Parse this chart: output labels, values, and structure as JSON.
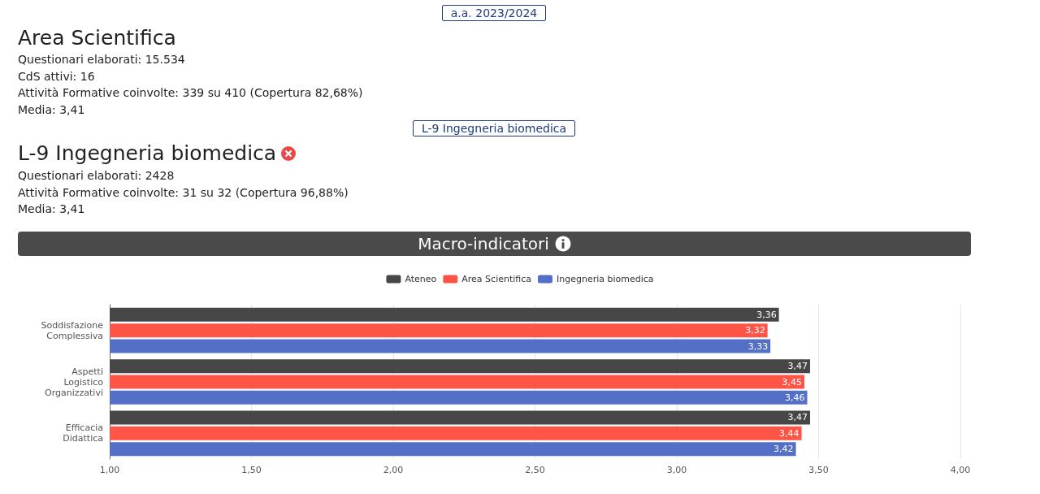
{
  "chart_data": {
    "type": "bar",
    "orientation": "horizontal",
    "title": "Macro-indicatori",
    "annotations": [
      "a.a. 2023/2024",
      "Area Scientifica",
      "Questionari elaborati: 15.534",
      "CdS attivi: 16",
      "Attività Formative coinvolte: 339 su 410 (Copertura 82,68%)",
      "Media: 3,41",
      "L-9 Ingegneria biomedica",
      "L-9 Ingegneria biomedica",
      "Questionari elaborati: 2428",
      "Attività Formative coinvolte: 31 su 32 (Copertura 96,88%)",
      "Media: 3,41"
    ],
    "categories": [
      "Soddisfazione Complessiva",
      "Aspetti Logistico Organizzativi",
      "Efficacia Didattica"
    ],
    "series": [
      {
        "name": "Ateneo",
        "color": "#474747",
        "values": [
          3.36,
          3.47,
          3.47
        ],
        "value_labels": [
          "3,36",
          "3,47",
          "3,47"
        ]
      },
      {
        "name": "Area Scientifica",
        "color": "#ff5546",
        "values": [
          3.32,
          3.45,
          3.44
        ],
        "value_labels": [
          "3,32",
          "3,45",
          "3,44"
        ]
      },
      {
        "name": "Ingegneria biomedica",
        "color": "#5470c6",
        "values": [
          3.33,
          3.46,
          3.42
        ],
        "value_labels": [
          "3,33",
          "3,46",
          "3,42"
        ]
      }
    ],
    "xlim": [
      1,
      4
    ],
    "xticks": [
      {
        "value": 1,
        "label": "1,00"
      },
      {
        "value": 1.5,
        "label": "1,50"
      },
      {
        "value": 2,
        "label": "2,00"
      },
      {
        "value": 2.5,
        "label": "2,50"
      },
      {
        "value": 3,
        "label": "3,00"
      },
      {
        "value": 3.5,
        "label": "3,50"
      },
      {
        "value": 4,
        "label": "4,00"
      }
    ],
    "grid": "x",
    "legend": "top"
  }
}
